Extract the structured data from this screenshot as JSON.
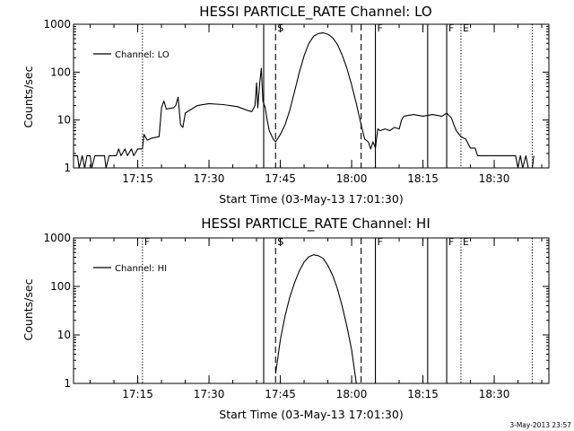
{
  "footer": {
    "timestamp": "3-May-2013 23:57"
  },
  "chart_data": [
    {
      "type": "line",
      "title": "HESSI PARTICLE_RATE Channel: LO",
      "xlabel": "Start Time (03-May-13 17:01:30)",
      "ylabel": "Counts/sec",
      "y_scale": "log",
      "xlim": [
        "17:01:30",
        "18:41:30"
      ],
      "ylim": [
        1,
        1000
      ],
      "x_ticks": [
        "17:15",
        "17:30",
        "17:45",
        "18:00",
        "18:15",
        "18:30"
      ],
      "y_ticks": [
        "1",
        "10",
        "100",
        "1000"
      ],
      "grid": false,
      "legend": {
        "position": "top-left",
        "entries": [
          "Channel: LO"
        ]
      },
      "markers": [
        {
          "time": "17:16:00",
          "style": "dotted",
          "label": ""
        },
        {
          "time": "17:41:30",
          "style": "solid",
          "label": ""
        },
        {
          "time": "17:44:00",
          "style": "dashed",
          "label": "S"
        },
        {
          "time": "18:02:00",
          "style": "dashed",
          "label": ""
        },
        {
          "time": "18:05:00",
          "style": "solid",
          "label": "F"
        },
        {
          "time": "18:16:00",
          "style": "solid",
          "label": ""
        },
        {
          "time": "18:20:00",
          "style": "solid",
          "label": "F"
        },
        {
          "time": "18:23:00",
          "style": "dotted",
          "label": "E"
        },
        {
          "time": "18:38:00",
          "style": "dotted",
          "label": ""
        }
      ],
      "series": [
        {
          "name": "Channel: LO",
          "points": [
            [
              "17:01:30",
              1.8
            ],
            [
              "17:02:20",
              1.8
            ],
            [
              "17:02:40",
              1
            ],
            [
              "17:03:20",
              1.8
            ],
            [
              "17:03:50",
              1
            ],
            [
              "17:04:20",
              1.8
            ],
            [
              "17:05:00",
              1.8
            ],
            [
              "17:05:20",
              1
            ],
            [
              "17:06:00",
              1.8
            ],
            [
              "17:08:00",
              1.8
            ],
            [
              "17:08:20",
              1
            ],
            [
              "17:09:00",
              1.8
            ],
            [
              "17:10:30",
              1.8
            ],
            [
              "17:11:00",
              2.5
            ],
            [
              "17:11:30",
              1.8
            ],
            [
              "17:12:20",
              2.5
            ],
            [
              "17:12:50",
              1.8
            ],
            [
              "17:13:40",
              2.5
            ],
            [
              "17:14:10",
              1.8
            ],
            [
              "17:15:00",
              2.5
            ],
            [
              "17:16:00",
              2.5
            ],
            [
              "17:16:20",
              5
            ],
            [
              "17:17:00",
              3.8
            ],
            [
              "17:18:00",
              4.2
            ],
            [
              "17:19:30",
              4.5
            ],
            [
              "17:20:00",
              18
            ],
            [
              "17:20:30",
              25
            ],
            [
              "17:21:00",
              17
            ],
            [
              "17:22:30",
              18
            ],
            [
              "17:23:00",
              20
            ],
            [
              "17:23:30",
              30
            ],
            [
              "17:24:00",
              8
            ],
            [
              "17:24:30",
              7
            ],
            [
              "17:25:00",
              14
            ],
            [
              "17:27:30",
              20
            ],
            [
              "17:30:00",
              22
            ],
            [
              "17:33:00",
              21
            ],
            [
              "17:36:00",
              19
            ],
            [
              "17:38:00",
              16
            ],
            [
              "17:39:00",
              15
            ],
            [
              "17:39:40",
              20
            ],
            [
              "17:40:00",
              60
            ],
            [
              "17:40:15",
              18
            ],
            [
              "17:40:40",
              60
            ],
            [
              "17:41:00",
              120
            ],
            [
              "17:41:20",
              25
            ],
            [
              "17:41:50",
              18
            ],
            [
              "17:42:10",
              11
            ],
            [
              "17:42:40",
              6
            ],
            [
              "17:43:30",
              4
            ],
            [
              "17:44:00",
              3.5
            ],
            [
              "17:45:00",
              5
            ],
            [
              "17:46:00",
              8
            ],
            [
              "17:47:00",
              16
            ],
            [
              "17:48:00",
              40
            ],
            [
              "17:49:00",
              100
            ],
            [
              "17:50:00",
              220
            ],
            [
              "17:51:00",
              400
            ],
            [
              "17:52:00",
              560
            ],
            [
              "17:53:00",
              640
            ],
            [
              "17:54:00",
              660
            ],
            [
              "17:55:00",
              620
            ],
            [
              "17:56:00",
              520
            ],
            [
              "17:57:00",
              380
            ],
            [
              "17:58:00",
              230
            ],
            [
              "17:59:00",
              120
            ],
            [
              "18:00:00",
              55
            ],
            [
              "18:01:00",
              22
            ],
            [
              "18:02:00",
              8
            ],
            [
              "18:02:45",
              4
            ],
            [
              "18:03:30",
              3.5
            ],
            [
              "18:04:00",
              2.5
            ],
            [
              "18:04:30",
              3.5
            ],
            [
              "18:05:00",
              2.6
            ],
            [
              "18:05:30",
              6.5
            ],
            [
              "18:06:00",
              6
            ],
            [
              "18:07:00",
              6.5
            ],
            [
              "18:08:00",
              6
            ],
            [
              "18:09:00",
              7
            ],
            [
              "18:10:00",
              6.5
            ],
            [
              "18:10:30",
              10
            ],
            [
              "18:11:00",
              12
            ],
            [
              "18:13:00",
              13
            ],
            [
              "18:15:00",
              12
            ],
            [
              "18:17:00",
              13
            ],
            [
              "18:19:00",
              12
            ],
            [
              "18:20:00",
              14
            ],
            [
              "18:21:00",
              11
            ],
            [
              "18:21:30",
              8
            ],
            [
              "18:22:00",
              6
            ],
            [
              "18:23:00",
              4.5
            ],
            [
              "18:24:00",
              4
            ],
            [
              "18:25:00",
              2.6
            ],
            [
              "18:26:00",
              2.6
            ],
            [
              "18:26:30",
              1.8
            ],
            [
              "18:34:30",
              1.8
            ],
            [
              "18:35:00",
              1
            ],
            [
              "18:35:30",
              1.8
            ],
            [
              "18:36:00",
              1
            ],
            [
              "18:36:40",
              1.8
            ],
            [
              "18:37:10",
              1
            ],
            [
              "18:38:00",
              1
            ],
            [
              "18:38:20",
              1.8
            ]
          ]
        }
      ]
    },
    {
      "type": "line",
      "title": "HESSI PARTICLE_RATE Channel: HI",
      "xlabel": "Start Time (03-May-13 17:01:30)",
      "ylabel": "Counts/sec",
      "y_scale": "log",
      "xlim": [
        "17:01:30",
        "18:41:30"
      ],
      "ylim": [
        1,
        1000
      ],
      "x_ticks": [
        "17:15",
        "17:30",
        "17:45",
        "18:00",
        "18:15",
        "18:30"
      ],
      "y_ticks": [
        "1",
        "10",
        "100",
        "1000"
      ],
      "grid": false,
      "legend": {
        "position": "top-left",
        "entries": [
          "Channel: HI"
        ]
      },
      "markers": [
        {
          "time": "17:16:00",
          "style": "dotted",
          "label": "F"
        },
        {
          "time": "17:41:30",
          "style": "solid",
          "label": ""
        },
        {
          "time": "17:44:00",
          "style": "dashed",
          "label": "S"
        },
        {
          "time": "18:02:00",
          "style": "dashed",
          "label": ""
        },
        {
          "time": "18:05:00",
          "style": "solid",
          "label": "F"
        },
        {
          "time": "18:16:00",
          "style": "solid",
          "label": ""
        },
        {
          "time": "18:20:00",
          "style": "solid",
          "label": "F"
        },
        {
          "time": "18:23:00",
          "style": "dotted",
          "label": "E"
        },
        {
          "time": "18:38:00",
          "style": "dotted",
          "label": ""
        }
      ],
      "series": [
        {
          "name": "Channel: HI",
          "points": [
            [
              "17:44:00",
              1.6
            ],
            [
              "17:44:30",
              3.5
            ],
            [
              "17:45:00",
              8
            ],
            [
              "17:46:00",
              25
            ],
            [
              "17:47:00",
              60
            ],
            [
              "17:48:00",
              120
            ],
            [
              "17:49:00",
              210
            ],
            [
              "17:50:00",
              320
            ],
            [
              "17:51:00",
              410
            ],
            [
              "17:52:00",
              450
            ],
            [
              "17:53:00",
              430
            ],
            [
              "17:54:00",
              380
            ],
            [
              "17:55:00",
              270
            ],
            [
              "17:56:00",
              170
            ],
            [
              "17:57:00",
              90
            ],
            [
              "17:58:00",
              40
            ],
            [
              "17:59:00",
              15
            ],
            [
              "18:00:00",
              5
            ],
            [
              "18:00:30",
              2.2
            ],
            [
              "18:01:00",
              1
            ]
          ]
        }
      ]
    }
  ]
}
